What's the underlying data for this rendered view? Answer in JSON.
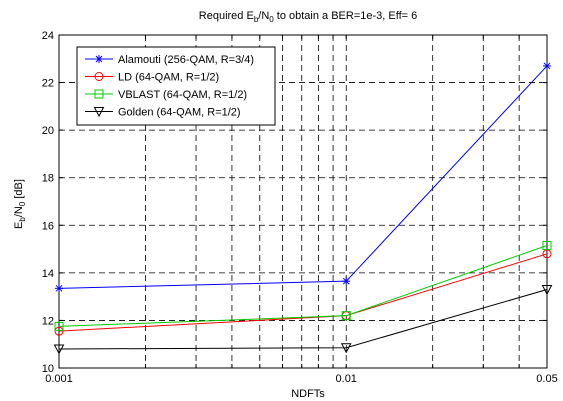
{
  "chart_data": {
    "type": "line",
    "title": {
      "pre": "Required E",
      "sub1": "b",
      "mid": "/N",
      "sub2": "0",
      "post": " to obtain a BER=1e-3, Eff= 6"
    },
    "xlabel": "NDFTs",
    "ylabel": {
      "pre": "E",
      "sub1": "b",
      "mid": "/N",
      "sub2": "0",
      "post": " [dB]"
    },
    "xscale": "log",
    "xlim": [
      0.001,
      0.05
    ],
    "ylim": [
      10,
      24
    ],
    "xticks": [
      0.001,
      0.01,
      0.05
    ],
    "xtick_labels": [
      "0.001",
      "0.01",
      "0.05"
    ],
    "xgrid": [
      0.001,
      0.002,
      0.003,
      0.004,
      0.005,
      0.006,
      0.007,
      0.008,
      0.009,
      0.01,
      0.02,
      0.03,
      0.04,
      0.05
    ],
    "yticks": [
      10,
      12,
      14,
      16,
      18,
      20,
      22,
      24
    ],
    "ytick_labels": [
      "10",
      "12",
      "14",
      "16",
      "18",
      "20",
      "22",
      "24"
    ],
    "grid": true,
    "legend_position": "top-left",
    "series": [
      {
        "name": "Alamouti (256-QAM, R=3/4)",
        "color": "#0000ff",
        "marker": "star",
        "x": [
          0.001,
          0.01,
          0.05
        ],
        "y": [
          13.35,
          13.65,
          22.7
        ]
      },
      {
        "name": "LD (64-QAM, R=1/2)",
        "color": "#ff0000",
        "marker": "circle",
        "x": [
          0.001,
          0.01,
          0.05
        ],
        "y": [
          11.55,
          12.2,
          14.8
        ]
      },
      {
        "name": "VBLAST (64-QAM, R=1/2)",
        "color": "#00cc00",
        "marker": "square",
        "x": [
          0.001,
          0.01,
          0.05
        ],
        "y": [
          11.75,
          12.2,
          15.15
        ]
      },
      {
        "name": "Golden (64-QAM, R=1/2)",
        "color": "#000000",
        "marker": "triangle-down",
        "x": [
          0.001,
          0.01,
          0.05
        ],
        "y": [
          10.8,
          10.85,
          13.3
        ]
      }
    ]
  }
}
